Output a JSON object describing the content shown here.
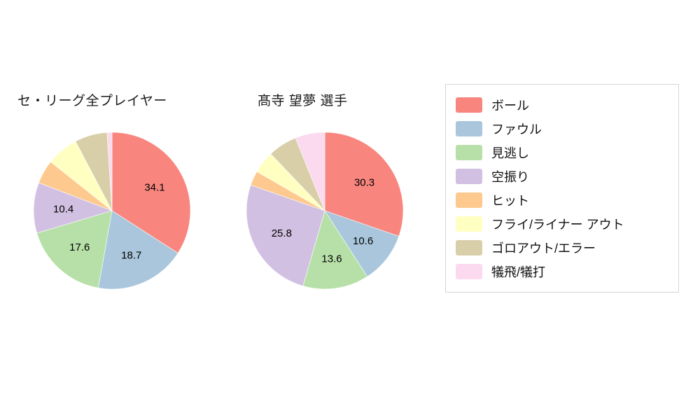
{
  "page": {
    "background": "#ffffff"
  },
  "palette": [
    "#f8867e",
    "#a9c6dc",
    "#b7e0a8",
    "#d2c0e2",
    "#fdc98f",
    "#ffffc2",
    "#d8cfa9",
    "#fbd9ef"
  ],
  "legend": {
    "labels": [
      "ボール",
      "ファウル",
      "見逃し",
      "空振り",
      "ヒット",
      "フライ/ライナー アウト",
      "ゴロアウト/エラー",
      "犠飛/犠打"
    ]
  },
  "chart_data": [
    {
      "type": "pie",
      "title": "セ・リーグ全プレイヤー",
      "labels": [
        "ボール",
        "ファウル",
        "見逃し",
        "空振り",
        "ヒット",
        "フライ/ライナー アウト",
        "ゴロアウト/エラー",
        "犠飛/犠打"
      ],
      "values": [
        34.1,
        18.7,
        17.6,
        10.4,
        4.9,
        6.6,
        6.7,
        1.0
      ],
      "shown_value_labels": [
        "34.1",
        "18.7",
        "17.6",
        "10.4"
      ],
      "label_threshold": 10,
      "start_angle_deg": 90,
      "direction": "clockwise",
      "legend_position": "right"
    },
    {
      "type": "pie",
      "title": "髙寺 望夢 選手",
      "labels": [
        "ボール",
        "ファウル",
        "見逃し",
        "空振り",
        "ヒット",
        "フライ/ライナー アウト",
        "ゴロアウト/エラー",
        "犠飛/犠打"
      ],
      "values": [
        30.3,
        10.6,
        13.6,
        25.8,
        3.0,
        4.6,
        6.0,
        6.1
      ],
      "shown_value_labels": [
        "30.3",
        "10.6",
        "13.6",
        "25.8"
      ],
      "label_threshold": 10,
      "start_angle_deg": 90,
      "direction": "clockwise",
      "legend_position": "right"
    }
  ]
}
